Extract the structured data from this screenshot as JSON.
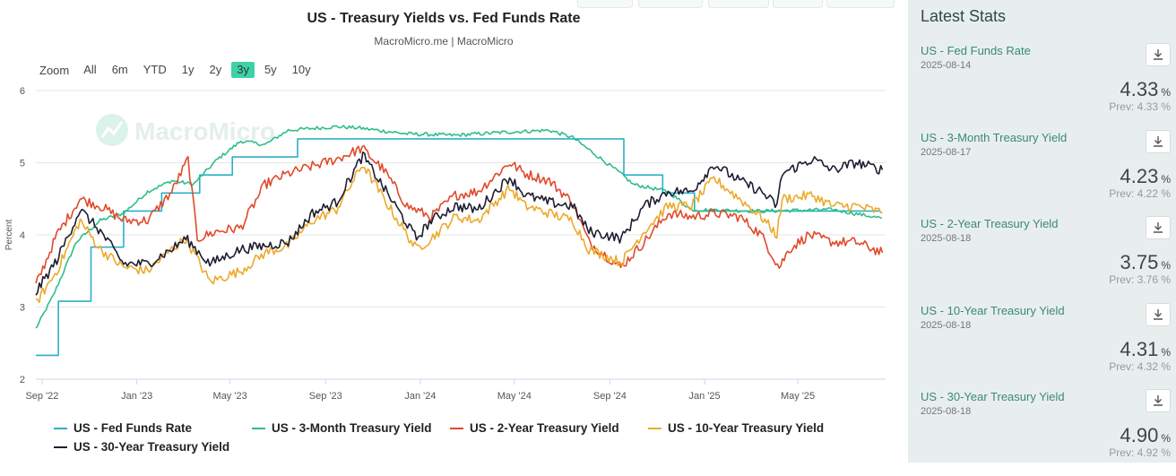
{
  "chart_data": {
    "type": "line",
    "title": "US - Treasury Yields vs. Fed Funds Rate",
    "subtitle": "MacroMicro.me | MacroMicro",
    "watermark": "MacroMicro",
    "ylabel": "Percent",
    "ylim": [
      2,
      6
    ],
    "yticks": [
      "2",
      "3",
      "4",
      "5",
      "6"
    ],
    "x_range": [
      "2022-08-24",
      "2025-08-22"
    ],
    "xticks": [
      {
        "label": "Sep '22",
        "date": "2022-09-01"
      },
      {
        "label": "Jan '23",
        "date": "2023-01-01"
      },
      {
        "label": "May '23",
        "date": "2023-05-01"
      },
      {
        "label": "Sep '23",
        "date": "2023-09-01"
      },
      {
        "label": "Jan '24",
        "date": "2024-01-01"
      },
      {
        "label": "May '24",
        "date": "2024-05-01"
      },
      {
        "label": "Sep '24",
        "date": "2024-09-01"
      },
      {
        "label": "Jan '25",
        "date": "2025-01-01"
      },
      {
        "label": "May '25",
        "date": "2025-05-01"
      }
    ],
    "grid": true,
    "legend_position": "bottom",
    "series": [
      {
        "name": "US - Fed Funds Rate",
        "color": "#2bb0c7",
        "step": true,
        "points": [
          [
            "2022-08-24",
            2.33
          ],
          [
            "2022-09-22",
            3.08
          ],
          [
            "2022-11-03",
            3.83
          ],
          [
            "2022-12-15",
            4.33
          ],
          [
            "2023-02-02",
            4.58
          ],
          [
            "2023-03-23",
            4.83
          ],
          [
            "2023-05-04",
            5.08
          ],
          [
            "2023-07-27",
            5.33
          ],
          [
            "2024-09-19",
            4.83
          ],
          [
            "2024-11-08",
            4.58
          ],
          [
            "2024-12-19",
            4.33
          ],
          [
            "2025-08-14",
            4.33
          ]
        ]
      },
      {
        "name": "US - 3-Month Treasury Yield",
        "color": "#2fbd8a",
        "points": [
          [
            "2022-08-24",
            2.7
          ],
          [
            "2022-09-15",
            3.15
          ],
          [
            "2022-10-15",
            3.9
          ],
          [
            "2022-11-15",
            4.2
          ],
          [
            "2022-12-15",
            4.3
          ],
          [
            "2023-01-15",
            4.6
          ],
          [
            "2023-02-15",
            4.75
          ],
          [
            "2023-03-15",
            4.7
          ],
          [
            "2023-04-15",
            5.05
          ],
          [
            "2023-05-15",
            5.3
          ],
          [
            "2023-06-15",
            5.25
          ],
          [
            "2023-07-15",
            5.45
          ],
          [
            "2023-09-15",
            5.5
          ],
          [
            "2023-10-15",
            5.48
          ],
          [
            "2023-12-15",
            5.4
          ],
          [
            "2024-02-15",
            5.38
          ],
          [
            "2024-04-15",
            5.42
          ],
          [
            "2024-06-15",
            5.45
          ],
          [
            "2024-07-15",
            5.35
          ],
          [
            "2024-08-15",
            5.1
          ],
          [
            "2024-09-15",
            4.85
          ],
          [
            "2024-10-01",
            4.7
          ],
          [
            "2024-11-15",
            4.6
          ],
          [
            "2024-12-15",
            4.35
          ],
          [
            "2025-03-15",
            4.33
          ],
          [
            "2025-06-15",
            4.35
          ],
          [
            "2025-08-17",
            4.23
          ]
        ]
      },
      {
        "name": "US - 2-Year Treasury Yield",
        "color": "#e04a2b",
        "points": [
          [
            "2022-08-24",
            3.3
          ],
          [
            "2022-09-20",
            4.0
          ],
          [
            "2022-10-20",
            4.5
          ],
          [
            "2022-11-15",
            4.4
          ],
          [
            "2022-12-15",
            4.2
          ],
          [
            "2023-01-15",
            4.2
          ],
          [
            "2023-02-15",
            4.6
          ],
          [
            "2023-03-08",
            5.05
          ],
          [
            "2023-03-20",
            3.95
          ],
          [
            "2023-04-15",
            4.05
          ],
          [
            "2023-05-15",
            4.1
          ],
          [
            "2023-06-15",
            4.7
          ],
          [
            "2023-07-15",
            4.85
          ],
          [
            "2023-08-15",
            4.95
          ],
          [
            "2023-09-15",
            5.05
          ],
          [
            "2023-10-18",
            5.2
          ],
          [
            "2023-11-15",
            4.9
          ],
          [
            "2023-12-15",
            4.4
          ],
          [
            "2024-01-15",
            4.25
          ],
          [
            "2024-02-15",
            4.55
          ],
          [
            "2024-03-15",
            4.6
          ],
          [
            "2024-04-25",
            5.0
          ],
          [
            "2024-05-15",
            4.85
          ],
          [
            "2024-06-15",
            4.75
          ],
          [
            "2024-07-15",
            4.45
          ],
          [
            "2024-08-05",
            3.9
          ],
          [
            "2024-09-15",
            3.55
          ],
          [
            "2024-10-15",
            3.9
          ],
          [
            "2024-11-15",
            4.3
          ],
          [
            "2024-12-15",
            4.25
          ],
          [
            "2025-01-15",
            4.3
          ],
          [
            "2025-02-15",
            4.25
          ],
          [
            "2025-03-15",
            4.0
          ],
          [
            "2025-04-07",
            3.55
          ],
          [
            "2025-04-20",
            3.8
          ],
          [
            "2025-05-15",
            4.0
          ],
          [
            "2025-06-15",
            3.9
          ],
          [
            "2025-07-15",
            3.9
          ],
          [
            "2025-08-18",
            3.75
          ]
        ]
      },
      {
        "name": "US - 10-Year Treasury Yield",
        "color": "#eda92a",
        "points": [
          [
            "2022-08-24",
            3.05
          ],
          [
            "2022-09-20",
            3.5
          ],
          [
            "2022-10-20",
            4.2
          ],
          [
            "2022-11-15",
            3.8
          ],
          [
            "2022-12-15",
            3.55
          ],
          [
            "2023-01-15",
            3.5
          ],
          [
            "2023-02-15",
            3.8
          ],
          [
            "2023-03-05",
            3.95
          ],
          [
            "2023-04-05",
            3.35
          ],
          [
            "2023-05-15",
            3.5
          ],
          [
            "2023-06-15",
            3.75
          ],
          [
            "2023-07-15",
            3.85
          ],
          [
            "2023-08-15",
            4.2
          ],
          [
            "2023-09-15",
            4.35
          ],
          [
            "2023-10-19",
            4.98
          ],
          [
            "2023-11-15",
            4.5
          ],
          [
            "2023-12-27",
            3.8
          ],
          [
            "2024-01-15",
            3.95
          ],
          [
            "2024-02-15",
            4.25
          ],
          [
            "2024-03-15",
            4.2
          ],
          [
            "2024-04-25",
            4.65
          ],
          [
            "2024-05-15",
            4.4
          ],
          [
            "2024-06-15",
            4.3
          ],
          [
            "2024-07-15",
            4.2
          ],
          [
            "2024-08-05",
            3.8
          ],
          [
            "2024-09-16",
            3.62
          ],
          [
            "2024-10-15",
            4.05
          ],
          [
            "2024-11-15",
            4.4
          ],
          [
            "2024-12-15",
            4.4
          ],
          [
            "2025-01-13",
            4.78
          ],
          [
            "2025-02-15",
            4.5
          ],
          [
            "2025-03-15",
            4.25
          ],
          [
            "2025-04-04",
            4.0
          ],
          [
            "2025-04-11",
            4.5
          ],
          [
            "2025-05-20",
            4.55
          ],
          [
            "2025-06-15",
            4.4
          ],
          [
            "2025-07-15",
            4.4
          ],
          [
            "2025-08-18",
            4.31
          ]
        ]
      },
      {
        "name": "US - 30-Year Treasury Yield",
        "color": "#1d1d33",
        "points": [
          [
            "2022-08-24",
            3.2
          ],
          [
            "2022-09-20",
            3.65
          ],
          [
            "2022-10-20",
            4.35
          ],
          [
            "2022-11-15",
            4.05
          ],
          [
            "2022-12-15",
            3.6
          ],
          [
            "2023-01-15",
            3.6
          ],
          [
            "2023-02-15",
            3.8
          ],
          [
            "2023-03-05",
            3.95
          ],
          [
            "2023-04-05",
            3.6
          ],
          [
            "2023-05-15",
            3.8
          ],
          [
            "2023-06-15",
            3.85
          ],
          [
            "2023-07-15",
            3.9
          ],
          [
            "2023-08-15",
            4.3
          ],
          [
            "2023-09-15",
            4.45
          ],
          [
            "2023-10-19",
            5.1
          ],
          [
            "2023-11-15",
            4.65
          ],
          [
            "2023-12-27",
            3.95
          ],
          [
            "2024-01-15",
            4.2
          ],
          [
            "2024-02-15",
            4.4
          ],
          [
            "2024-03-15",
            4.35
          ],
          [
            "2024-04-25",
            4.8
          ],
          [
            "2024-05-15",
            4.55
          ],
          [
            "2024-06-15",
            4.45
          ],
          [
            "2024-07-15",
            4.4
          ],
          [
            "2024-08-05",
            4.05
          ],
          [
            "2024-09-16",
            3.95
          ],
          [
            "2024-10-15",
            4.4
          ],
          [
            "2024-11-15",
            4.6
          ],
          [
            "2024-12-15",
            4.6
          ],
          [
            "2025-01-13",
            4.98
          ],
          [
            "2025-02-15",
            4.75
          ],
          [
            "2025-03-15",
            4.6
          ],
          [
            "2025-04-04",
            4.4
          ],
          [
            "2025-04-11",
            4.85
          ],
          [
            "2025-05-20",
            5.05
          ],
          [
            "2025-06-15",
            4.9
          ],
          [
            "2025-07-15",
            5.0
          ],
          [
            "2025-08-18",
            4.9
          ]
        ]
      }
    ]
  },
  "toolbar": {
    "zoom_label": "Zoom",
    "ranges": [
      "All",
      "6m",
      "YTD",
      "1y",
      "2y",
      "3y",
      "5y",
      "10y"
    ],
    "active_range": "3y"
  },
  "sidebar": {
    "title": "Latest Stats",
    "stats": [
      {
        "name": "US - Fed Funds Rate",
        "date": "2025-08-14",
        "value": "4.33",
        "unit": "%",
        "prev": "Prev: 4.33 %"
      },
      {
        "name": "US - 3-Month Treasury Yield",
        "date": "2025-08-17",
        "value": "4.23",
        "unit": "%",
        "prev": "Prev: 4.22 %"
      },
      {
        "name": "US - 2-Year Treasury Yield",
        "date": "2025-08-18",
        "value": "3.75",
        "unit": "%",
        "prev": "Prev: 3.76 %"
      },
      {
        "name": "US - 10-Year Treasury Yield",
        "date": "2025-08-18",
        "value": "4.31",
        "unit": "%",
        "prev": "Prev: 4.32 %"
      },
      {
        "name": "US - 30-Year Treasury Yield",
        "date": "2025-08-18",
        "value": "4.90",
        "unit": "%",
        "prev": "Prev: 4.92 %"
      }
    ]
  }
}
